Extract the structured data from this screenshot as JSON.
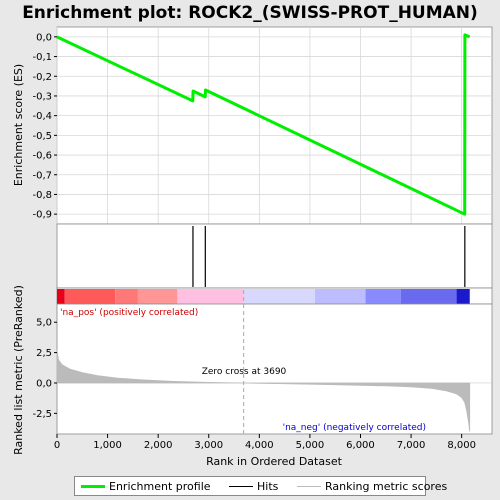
{
  "chart_data": {
    "type": "line",
    "title": "Enrichment plot: ROCK2_(SWISS-PROT_HUMAN)",
    "xlabel": "Rank in Ordered Dataset",
    "xlim": [
      0,
      8600
    ],
    "x_ticks": [
      "0",
      "1,000",
      "2,000",
      "3,000",
      "4,000",
      "5,000",
      "6,000",
      "7,000",
      "8,000"
    ],
    "x_tick_values": [
      0,
      1000,
      2000,
      3000,
      4000,
      5000,
      6000,
      7000,
      8000
    ],
    "top_panel": {
      "ylabel": "Enrichment score (ES)",
      "ylim": [
        -0.95,
        0.05
      ],
      "y_ticks": [
        "0,0",
        "-0,1",
        "-0,2",
        "-0,3",
        "-0,4",
        "-0,5",
        "-0,6",
        "-0,7",
        "-0,8",
        "-0,9"
      ],
      "y_tick_values": [
        0.0,
        -0.1,
        -0.2,
        -0.3,
        -0.4,
        -0.5,
        -0.6,
        -0.7,
        -0.8,
        -0.9
      ],
      "grid": true,
      "series": [
        {
          "name": "Enrichment profile",
          "color": "#00ee00",
          "x": [
            0,
            2685,
            2690,
            2930,
            2935,
            8060,
            8065,
            8160
          ],
          "y": [
            0.0,
            -0.325,
            -0.275,
            -0.305,
            -0.27,
            -0.9,
            0.01,
            0.0
          ]
        }
      ]
    },
    "hits": {
      "name": "Hits",
      "x": [
        2688,
        2932,
        8063
      ]
    },
    "heatmap_bar": {
      "segments": [
        {
          "from": 0,
          "to": 150,
          "color": "#e8001a"
        },
        {
          "from": 150,
          "to": 1150,
          "color": "#ff5a5a"
        },
        {
          "from": 1150,
          "to": 1600,
          "color": "#ff7878"
        },
        {
          "from": 1600,
          "to": 2380,
          "color": "#ff9696"
        },
        {
          "from": 2380,
          "to": 3690,
          "color": "#ffbfe0"
        },
        {
          "from": 3690,
          "to": 5100,
          "color": "#d8d8ff"
        },
        {
          "from": 5100,
          "to": 6100,
          "color": "#bcbcff"
        },
        {
          "from": 6100,
          "to": 6800,
          "color": "#8a8aff"
        },
        {
          "from": 6800,
          "to": 7900,
          "color": "#6a6aee"
        },
        {
          "from": 7900,
          "to": 8160,
          "color": "#1a1acc"
        }
      ]
    },
    "bottom_panel": {
      "ylabel": "Ranked list metric (PreRanked)",
      "ylim": [
        -4.2,
        6.5
      ],
      "y_ticks": [
        "5,0",
        "2,5",
        "0,0",
        "-2,5"
      ],
      "y_tick_values": [
        5.0,
        2.5,
        0.0,
        -2.5
      ],
      "series": [
        {
          "name": "Ranking metric scores",
          "color": "#bbbbbb",
          "x": [
            0,
            30,
            100,
            250,
            500,
            800,
            1200,
            1700,
            2300,
            3000,
            3690,
            4500,
            5500,
            6500,
            7000,
            7400,
            7700,
            7900,
            8000,
            8060,
            8100,
            8140,
            8160
          ],
          "y": [
            2.7,
            1.9,
            1.5,
            1.15,
            0.85,
            0.6,
            0.4,
            0.25,
            0.13,
            0.05,
            0.0,
            -0.06,
            -0.14,
            -0.24,
            -0.32,
            -0.45,
            -0.65,
            -0.9,
            -1.2,
            -1.6,
            -2.3,
            -3.3,
            -4.0
          ]
        }
      ],
      "zero_cross_label": "Zero cross at 3690",
      "zero_cross": 3690,
      "pos_label": "'na_pos' (positively correlated)",
      "neg_label": "'na_neg' (negatively correlated)",
      "pos_color": "#cc0000",
      "neg_color": "#0000cc"
    },
    "legend": [
      {
        "name": "Enrichment profile",
        "color": "#00ee00"
      },
      {
        "name": "Hits",
        "color": "#000000"
      },
      {
        "name": "Ranking metric scores",
        "color": "#bbbbbb"
      }
    ],
    "legend_position": "bottom"
  }
}
